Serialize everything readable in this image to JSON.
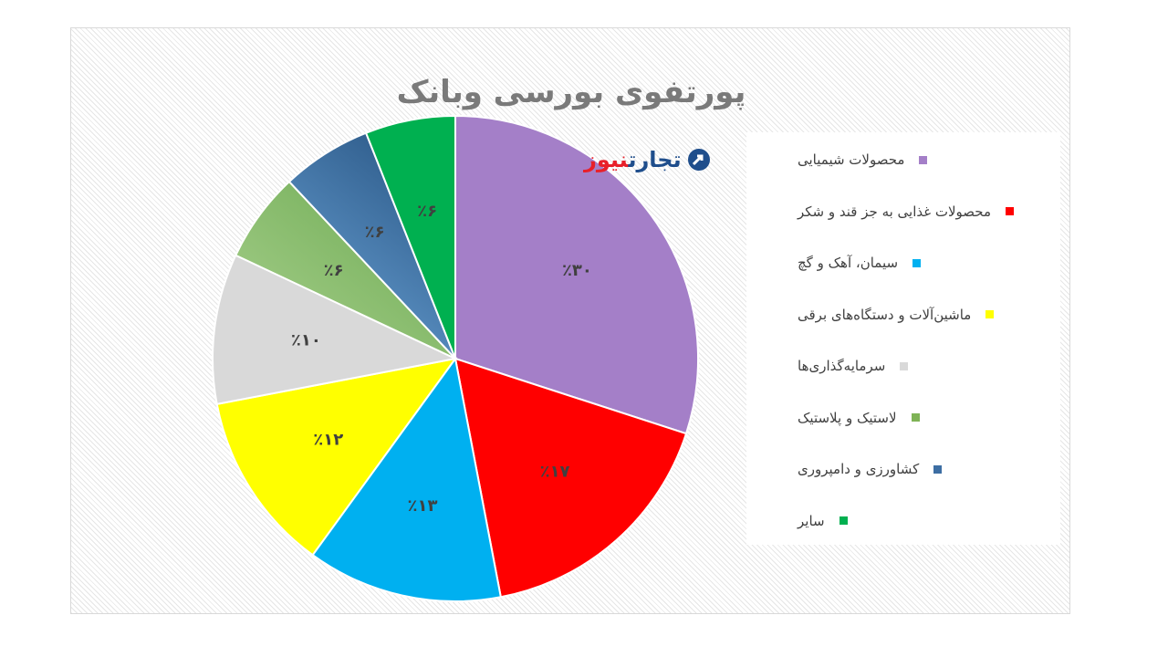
{
  "chart_data": {
    "type": "pie",
    "title": "پورتفوی بورسی وبانک",
    "categories": [
      "محصولات شیمیایی",
      "محصولات غذایی به جز قند و شکر",
      "سیمان، آهک و گچ",
      "ماشین‌آلات و دستگاه‌های برقی",
      "سرمایه‌گذاری‌ها",
      "لاستیک و پلاستیک",
      "کشاورزی و دامپروری",
      "سایر"
    ],
    "values": [
      30,
      17,
      13,
      12,
      10,
      6,
      6,
      6
    ],
    "data_labels": [
      "٪۳۰",
      "٪۱۷",
      "٪۱۳",
      "٪۱۲",
      "٪۱۰",
      "٪۶",
      "٪۶",
      "٪۶"
    ],
    "colors": [
      "#a47fc8",
      "#ff0000",
      "#00b0f0",
      "#ffff00",
      "#d9d9d9",
      "#7fb356",
      "#3d6ea3",
      "#00b050"
    ],
    "legend_position": "right"
  },
  "logo": {
    "word1": "تجارت",
    "word2": "نیوز",
    "icon": "tejarat-news-logo-icon"
  }
}
